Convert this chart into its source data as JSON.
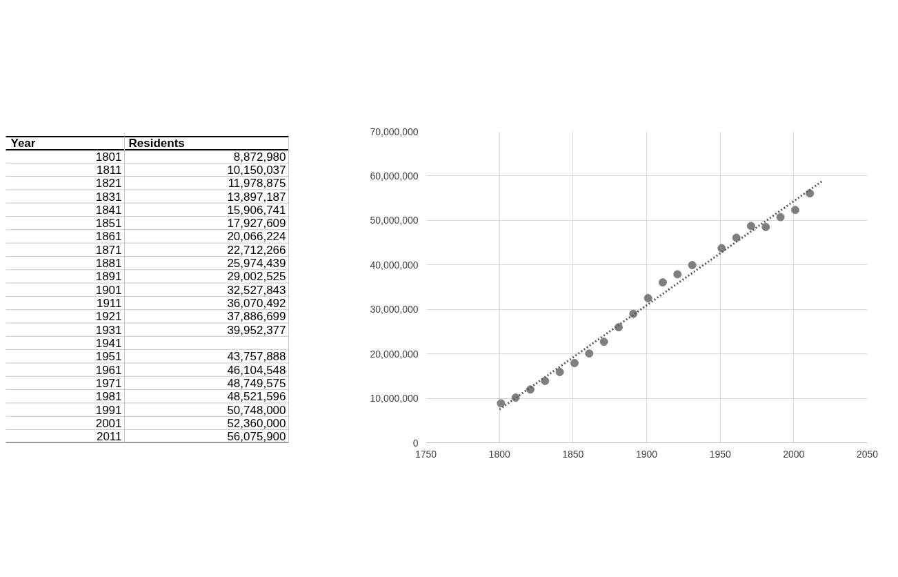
{
  "chart_data": {
    "type": "scatter",
    "annotations": [
      "Year",
      "Residents",
      "1801",
      "1811",
      "1821",
      "1831",
      "1841",
      "1851",
      "1861",
      "1871",
      "1881",
      "1891",
      "1901",
      "1911",
      "1921",
      "1931",
      "1941",
      "1951",
      "1961",
      "1971",
      "1981",
      "1991",
      "2001",
      "2011",
      "8,872,980",
      "10,150,037",
      "11,978,875",
      "13,897,187",
      "15,906,741",
      "17,927,609",
      "20,066,224",
      "22,712,266",
      "25,974,439",
      "29,002,525",
      "32,527,843",
      "36,070,492",
      "37,886,699",
      "39,952,377",
      "43,757,888",
      "46,104,548",
      "48,749,575",
      "48,521,596",
      "50,748,000",
      "52,360,000",
      "56,075,900"
    ],
    "x": [
      1801,
      1811,
      1821,
      1831,
      1841,
      1851,
      1861,
      1871,
      1881,
      1891,
      1901,
      1911,
      1921,
      1931,
      1941,
      1951,
      1961,
      1971,
      1981,
      1991,
      2001,
      2011
    ],
    "series": [
      {
        "type": "scatter",
        "marker": "circle",
        "color": "#7f7f7f",
        "values": [
          8872980,
          10150037,
          11978875,
          13897187,
          15906741,
          17927609,
          20066224,
          22712266,
          25974439,
          29002525,
          32527843,
          36070492,
          37886699,
          39952377,
          null,
          43757888,
          46104548,
          48749575,
          48521596,
          50748000,
          52360000,
          56075900
        ]
      },
      {
        "type": "line",
        "color": "#595959",
        "line_style": "dotted",
        "x": [
          1800,
          2020
        ],
        "values": [
          7500000,
          59000000
        ]
      }
    ],
    "grid": true,
    "xlim": [
      1750,
      2050
    ],
    "xticks": [
      1750,
      1800,
      1850,
      1900,
      1950,
      2000,
      2050
    ],
    "ylim": [
      0,
      70000000
    ],
    "yticks": [
      {
        "value": 0,
        "label": "0"
      },
      {
        "value": 10000000,
        "label": "10,000,000"
      },
      {
        "value": 20000000,
        "label": "20,000,000"
      },
      {
        "value": 30000000,
        "label": "30,000,000"
      },
      {
        "value": 40000000,
        "label": "40,000,000"
      },
      {
        "value": 50000000,
        "label": "50,000,000"
      },
      {
        "value": 60000000,
        "label": "60,000,000"
      },
      {
        "value": 70000000,
        "label": "70,000,000"
      }
    ]
  }
}
